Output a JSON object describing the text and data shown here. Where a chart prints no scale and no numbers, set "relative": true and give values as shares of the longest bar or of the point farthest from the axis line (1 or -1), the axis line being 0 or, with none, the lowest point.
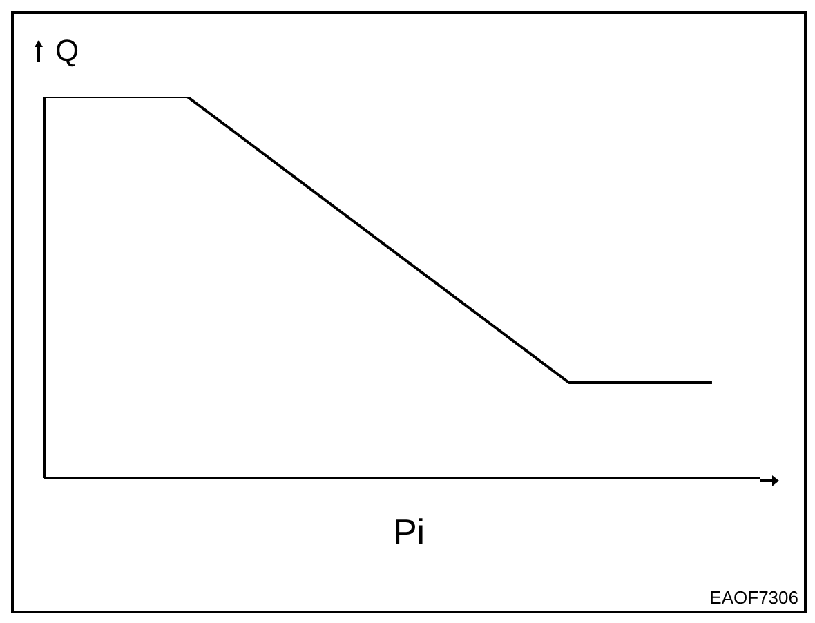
{
  "chart_data": {
    "type": "line",
    "relative": true,
    "xlabel": "Pi",
    "ylabel": "Q",
    "categories": [
      null,
      null,
      null,
      null,
      null,
      null,
      null,
      null,
      null,
      null,
      null,
      null,
      null,
      null,
      null,
      null
    ],
    "series": [
      {
        "color": "#000000",
        "values": [
          1,
          null,
          null,
          1,
          null,
          null,
          null,
          null,
          null,
          null,
          null,
          0.25,
          null,
          null,
          0.25,
          null
        ]
      }
    ],
    "annotations": [
      "EAOF7306"
    ],
    "grid": false,
    "legend": false,
    "marker": "none",
    "line_style": "solid"
  }
}
